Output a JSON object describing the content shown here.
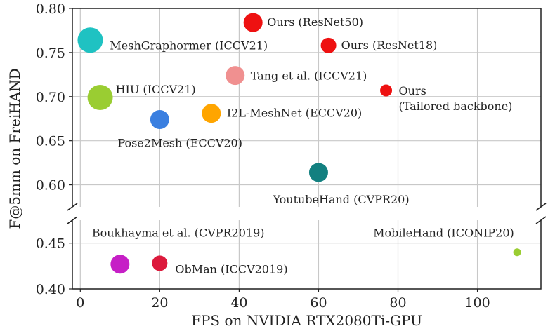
{
  "chart_data": {
    "type": "scatter",
    "title": "",
    "xlabel": "FPS on NVIDIA RTX2080Ti-GPU",
    "ylabel": "F@5mm on FreiHAND",
    "xlim": [
      -2,
      116
    ],
    "ylim_upper": [
      0.575,
      0.8
    ],
    "ylim_lower": [
      0.4,
      0.475
    ],
    "y_axis_break": true,
    "grid": true,
    "xticks": [
      "0",
      "20",
      "40",
      "60",
      "80",
      "100"
    ],
    "yticks_upper": [
      "0.60",
      "0.65",
      "0.70",
      "0.75",
      "0.80"
    ],
    "yticks_lower": [
      "0.40",
      "0.45"
    ],
    "points": [
      {
        "label": "MeshGraphormer (ICCV21)",
        "x": 2.5,
        "y": 0.764,
        "size": "large",
        "color": "#1fc2c2"
      },
      {
        "label": "HIU (ICCV21)",
        "x": 5,
        "y": 0.699,
        "size": "large",
        "color": "#9acd32"
      },
      {
        "label": "Pose2Mesh (ECCV20)",
        "x": 20,
        "y": 0.674,
        "size": "medium",
        "color": "#3a7fe0"
      },
      {
        "label": "I2L-MeshNet (ECCV20)",
        "x": 33,
        "y": 0.681,
        "size": "medium",
        "color": "#ffa500"
      },
      {
        "label": "Tang et al. (ICCV21)",
        "x": 39,
        "y": 0.724,
        "size": "medium",
        "color": "#f09090"
      },
      {
        "label": "Ours (ResNet50)",
        "x": 43.5,
        "y": 0.784,
        "size": "medium",
        "color": "#ee1111"
      },
      {
        "label": "Ours (ResNet18)",
        "x": 62.5,
        "y": 0.758,
        "size": "small",
        "color": "#ee1111"
      },
      {
        "label": "Ours\n(Tailored backbone)",
        "x": 77,
        "y": 0.707,
        "size": "xsmall",
        "color": "#ee1111"
      },
      {
        "label": "YoutubeHand (CVPR20)",
        "x": 60,
        "y": 0.614,
        "size": "medium",
        "color": "#138080"
      },
      {
        "label": "Boukhayma et al. (CVPR2019)",
        "x": 10,
        "y": 0.427,
        "size": "medium",
        "color": "#c61fc6"
      },
      {
        "label": "ObMan (ICCV2019)",
        "x": 20,
        "y": 0.428,
        "size": "small",
        "color": "#dc1a3c"
      },
      {
        "label": "MobileHand (ICONIP20)",
        "x": 110,
        "y": 0.44,
        "size": "tiny",
        "color": "#9acd32"
      }
    ]
  }
}
